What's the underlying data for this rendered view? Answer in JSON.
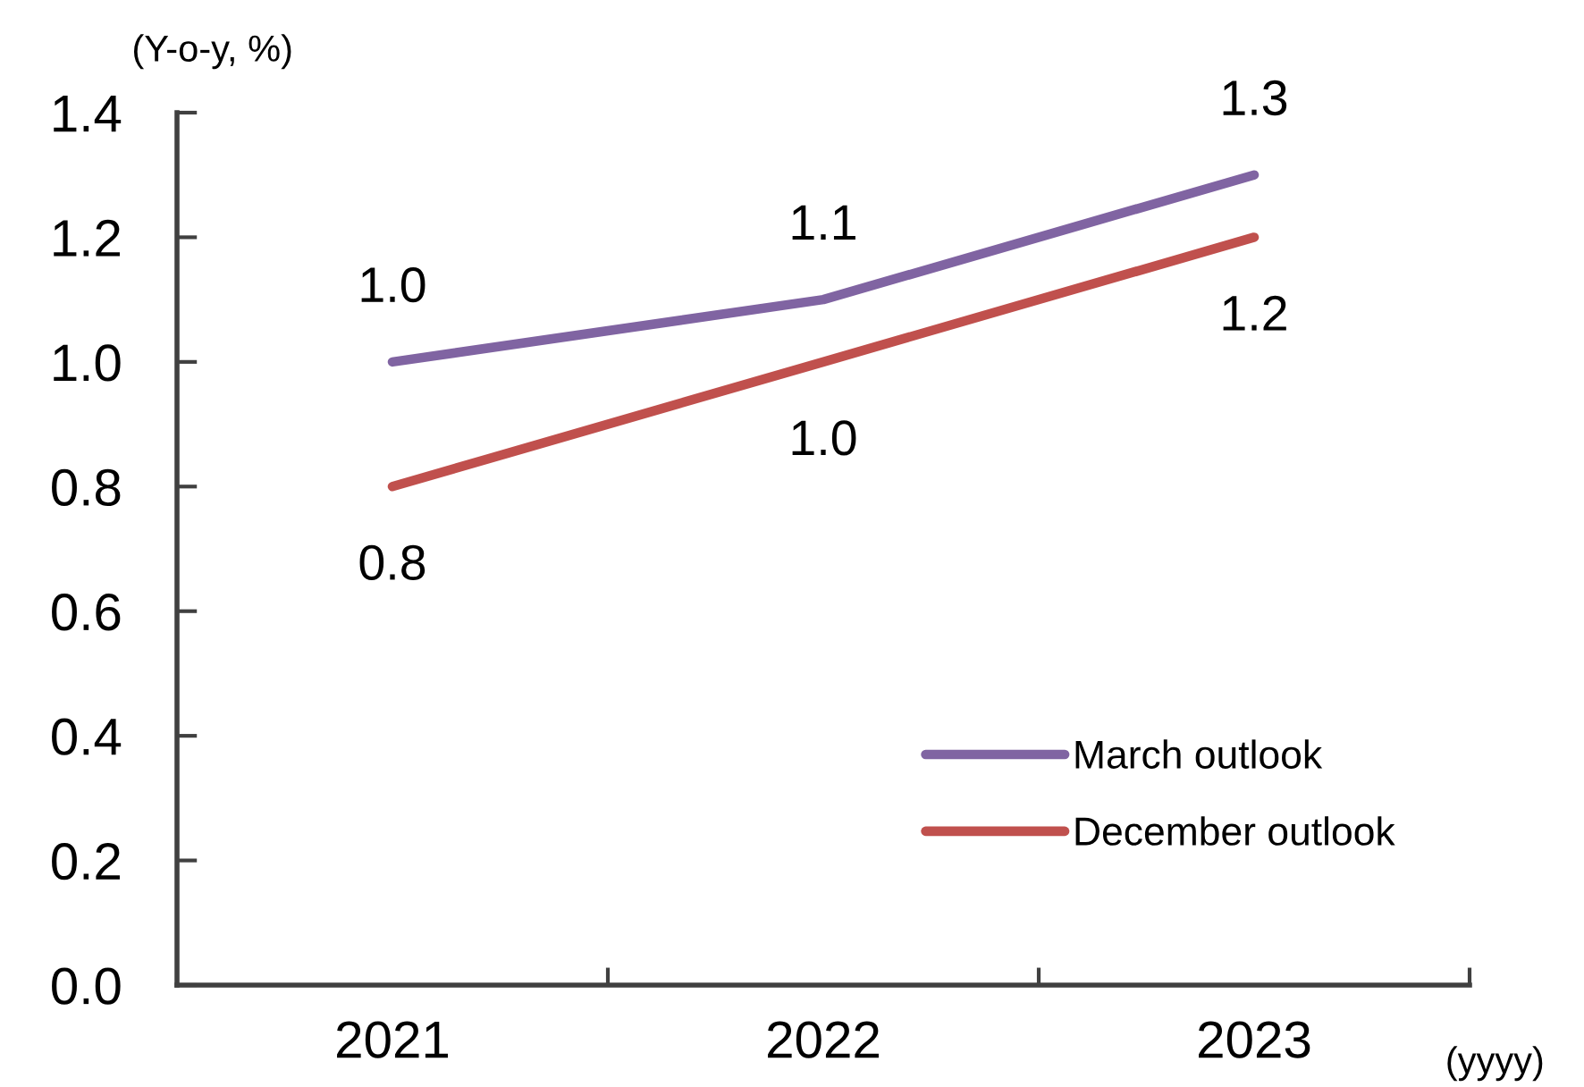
{
  "chart_data": {
    "type": "line",
    "ylabel": "(Y-o-y, %)",
    "xlabel": "(yyyy)",
    "categories": [
      "2021",
      "2022",
      "2023"
    ],
    "series": [
      {
        "name": "March outlook",
        "color": "#8064a2",
        "values": [
          1.0,
          1.1,
          1.3
        ],
        "value_labels": [
          "1.0",
          "1.1",
          "1.3"
        ]
      },
      {
        "name": "December outlook",
        "color": "#c0504d",
        "values": [
          0.8,
          1.0,
          1.2
        ],
        "value_labels": [
          "0.8",
          "1.0",
          "1.2"
        ]
      }
    ],
    "ylim": [
      0,
      1.4
    ],
    "yticks": [
      {
        "value": 0,
        "label": "0.0"
      },
      0.2,
      0.4,
      0.6,
      0.8,
      {
        "value": 1.0,
        "label": "1.0"
      },
      1.2,
      1.4
    ],
    "legend": "bottom right",
    "grid": false,
    "marker": "none",
    "line_style": "solid"
  }
}
